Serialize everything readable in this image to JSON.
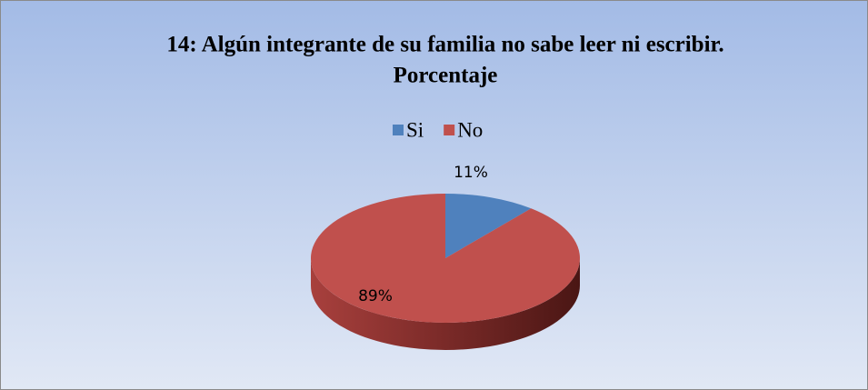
{
  "chart_data": {
    "type": "pie",
    "title": [
      "14: Algún integrante de su familia no sabe leer ni escribir.",
      "Porcentaje"
    ],
    "categories": [
      "Si",
      "No"
    ],
    "values": [
      11,
      89
    ],
    "value_labels": [
      "11%",
      "89%"
    ],
    "colors": [
      "#4f81bd",
      "#c0504d"
    ],
    "legend": "top"
  }
}
